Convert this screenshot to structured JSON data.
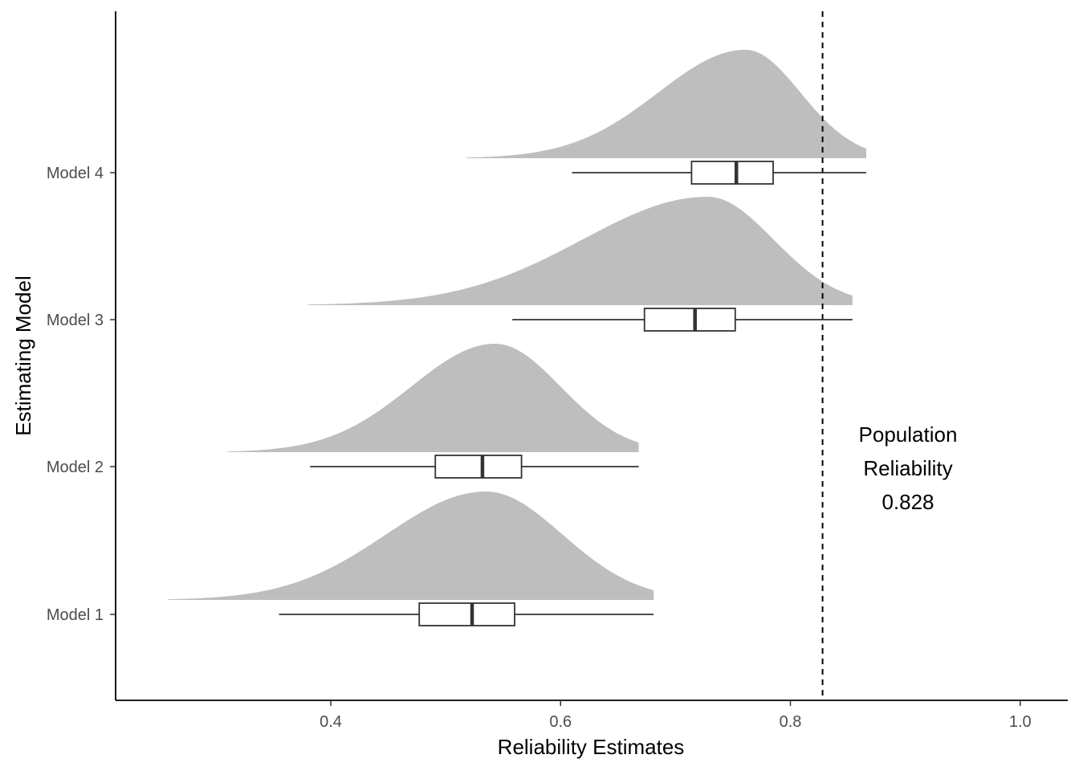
{
  "chart_data": {
    "type": "raincloud",
    "title": "",
    "xlabel": "Reliability Estimates",
    "ylabel": "Estimating Model",
    "xlim": [
      0.22,
      1.03
    ],
    "x_ticks": [
      0.4,
      0.6,
      0.8,
      1.0
    ],
    "x_tick_labels": [
      "0.4",
      "0.6",
      "0.8",
      "1.0"
    ],
    "grid": false,
    "fill_color": "#bebebe",
    "line_color": "#333333",
    "categories": [
      "Model 1",
      "Model 2",
      "Model 3",
      "Model 4"
    ],
    "series": [
      {
        "category": "Model 1",
        "density_peak": 0.535,
        "density_min": 0.258,
        "density_max": 0.681,
        "box": {
          "whisker_low": 0.355,
          "q1": 0.477,
          "median": 0.523,
          "q3": 0.56,
          "whisker_high": 0.681
        }
      },
      {
        "category": "Model 2",
        "density_peak": 0.543,
        "density_min": 0.31,
        "density_max": 0.668,
        "box": {
          "whisker_low": 0.382,
          "q1": 0.491,
          "median": 0.532,
          "q3": 0.566,
          "whisker_high": 0.668
        }
      },
      {
        "category": "Model 3",
        "density_peak": 0.728,
        "density_min": 0.38,
        "density_max": 0.854,
        "box": {
          "whisker_low": 0.558,
          "q1": 0.673,
          "median": 0.717,
          "q3": 0.752,
          "whisker_high": 0.854
        }
      },
      {
        "category": "Model 4",
        "density_peak": 0.761,
        "density_min": 0.518,
        "density_max": 0.866,
        "box": {
          "whisker_low": 0.61,
          "q1": 0.714,
          "median": 0.753,
          "q3": 0.785,
          "whisker_high": 0.866
        }
      }
    ],
    "reference_line": {
      "x": 0.828,
      "style": "dashed"
    },
    "annotation": [
      "Population",
      "Reliability",
      "0.828"
    ]
  }
}
